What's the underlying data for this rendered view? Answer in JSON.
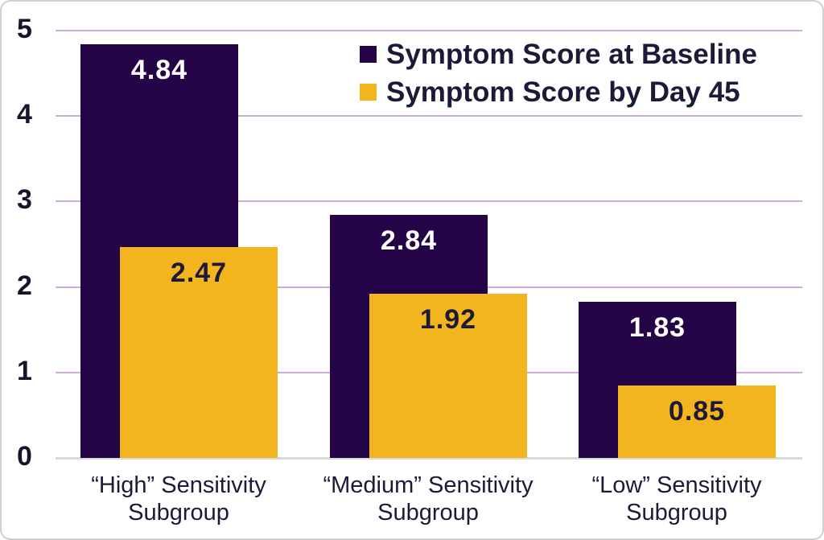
{
  "chart_data": {
    "type": "bar",
    "title": "",
    "xlabel": "",
    "ylabel": "",
    "categories": [
      "“High” Sensitivity Subgroup",
      "“Medium” Sensitivity Subgroup",
      "“Low” Sensitivity Subgroup"
    ],
    "category_lines": [
      [
        "“High” Sensitivity",
        "Subgroup"
      ],
      [
        "“Medium” Sensitivity",
        "Subgroup"
      ],
      [
        "“Low” Sensitivity",
        "Subgroup"
      ]
    ],
    "series": [
      {
        "name": "Symptom Score at Baseline",
        "color": "#250347",
        "label_color": "#ffffff",
        "values": [
          4.84,
          2.84,
          1.83
        ]
      },
      {
        "name": "Symptom Score by Day 45",
        "color": "#f3b51d",
        "label_color": "#1d1a38",
        "values": [
          2.47,
          1.92,
          0.85
        ]
      }
    ],
    "value_labels": [
      [
        "4.84",
        "2.84",
        "1.83"
      ],
      [
        "2.47",
        "1.92",
        "0.85"
      ]
    ],
    "ylim": [
      0,
      5
    ],
    "yticks": [
      0,
      1,
      2,
      3,
      4,
      5
    ],
    "grid": true,
    "legend_position": "top-right"
  },
  "style": {
    "grid_color": "#cfaade",
    "baseline_color": "#d9d9d9",
    "text_color": "#1d1a38",
    "tick_color": "#17152e",
    "background": "#ffffff",
    "border_color": "#d6cbd8"
  }
}
